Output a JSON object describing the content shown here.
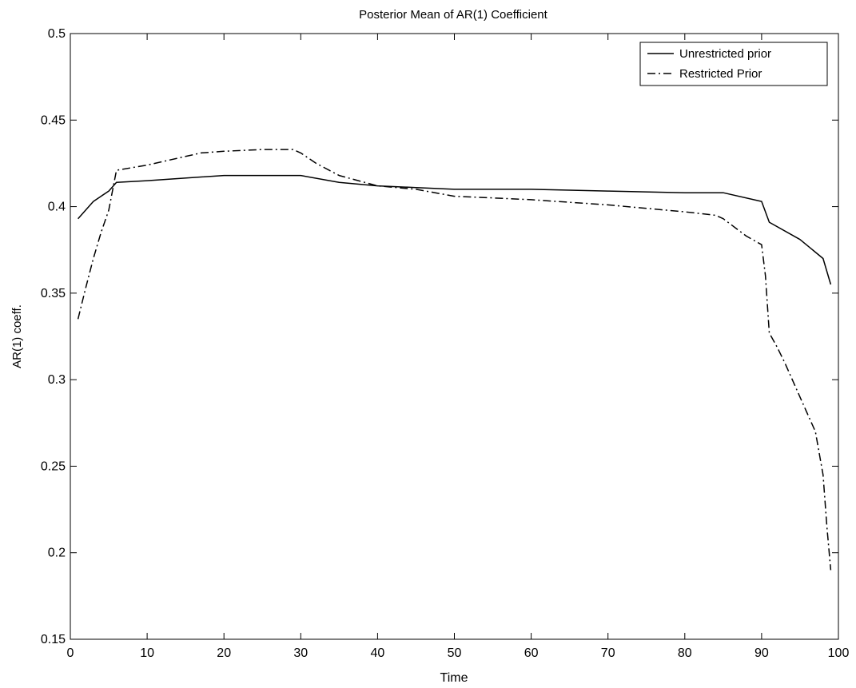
{
  "chart_data": {
    "type": "line",
    "title": "Posterior Mean of AR(1) Coefficient",
    "xlabel": "Time",
    "ylabel": "AR(1) coeff.",
    "xlim": [
      0,
      100
    ],
    "ylim": [
      0.15,
      0.5
    ],
    "xticks": [
      0,
      10,
      20,
      30,
      40,
      50,
      60,
      70,
      80,
      90,
      100
    ],
    "yticks": [
      0.15,
      0.2,
      0.25,
      0.3,
      0.35,
      0.4,
      0.45,
      0.5
    ],
    "grid": false,
    "legend_position": "top-right",
    "series": [
      {
        "name": "Unrestricted prior",
        "style": "solid",
        "color": "#000000",
        "x": [
          1,
          3,
          4,
          5,
          6,
          10,
          20,
          30,
          35,
          40,
          45,
          50,
          60,
          70,
          80,
          85,
          90,
          91,
          95,
          98,
          99
        ],
        "y": [
          0.393,
          0.403,
          0.406,
          0.409,
          0.414,
          0.415,
          0.418,
          0.418,
          0.414,
          0.412,
          0.411,
          0.41,
          0.41,
          0.409,
          0.408,
          0.408,
          0.403,
          0.391,
          0.381,
          0.37,
          0.355
        ]
      },
      {
        "name": "Restricted Prior",
        "style": "dashdot",
        "color": "#000000",
        "x": [
          1,
          2,
          3,
          4,
          5,
          6,
          10,
          17,
          20,
          25,
          29,
          30,
          32,
          35,
          40,
          45,
          50,
          55,
          60,
          70,
          80,
          84,
          85,
          88,
          90,
          90.5,
          91,
          92,
          93,
          95,
          97,
          98,
          98.5,
          99
        ],
        "y": [
          0.335,
          0.353,
          0.37,
          0.385,
          0.398,
          0.421,
          0.424,
          0.431,
          0.432,
          0.433,
          0.433,
          0.431,
          0.425,
          0.418,
          0.412,
          0.41,
          0.406,
          0.405,
          0.404,
          0.401,
          0.397,
          0.395,
          0.393,
          0.383,
          0.378,
          0.36,
          0.327,
          0.319,
          0.31,
          0.29,
          0.27,
          0.245,
          0.215,
          0.19
        ]
      }
    ]
  }
}
